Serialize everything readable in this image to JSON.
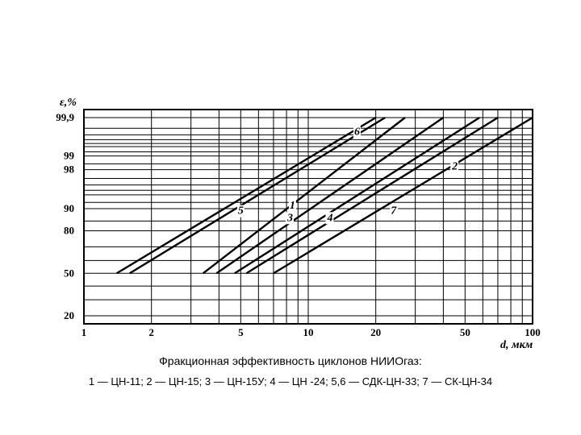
{
  "chart_data": {
    "type": "line",
    "title": "",
    "xlabel": "d, мкм",
    "ylabel": "ε,%",
    "x_scale": "log",
    "y_scale": "probability",
    "xlim": [
      1,
      100
    ],
    "ylim": [
      20,
      99.9
    ],
    "x_ticks": [
      1,
      2,
      5,
      10,
      20,
      50,
      100
    ],
    "x_tick_labels": [
      "1",
      "2",
      "5",
      "10",
      "20",
      "50",
      "100"
    ],
    "y_ticks": [
      20,
      50,
      80,
      90,
      98,
      99,
      99.9
    ],
    "y_tick_labels": [
      "20",
      "50",
      "80",
      "90",
      "98",
      "99",
      "99,9"
    ],
    "grid": true,
    "series": [
      {
        "name": "1",
        "x": [
          3.4,
          27.0
        ],
        "y": [
          50,
          99.9
        ]
      },
      {
        "name": "2",
        "x": [
          4.7,
          58.0
        ],
        "y": [
          50,
          99.9
        ]
      },
      {
        "name": "3",
        "x": [
          3.9,
          40.0
        ],
        "y": [
          50,
          99.9
        ]
      },
      {
        "name": "4",
        "x": [
          5.3,
          70.0
        ],
        "y": [
          50,
          99.9
        ]
      },
      {
        "name": "5",
        "x": [
          1.6,
          22.0
        ],
        "y": [
          50,
          99.9
        ]
      },
      {
        "name": "6",
        "x": [
          1.4,
          20.0
        ],
        "y": [
          50,
          99.9
        ]
      },
      {
        "name": "7",
        "x": [
          7.0,
          100.0
        ],
        "y": [
          50,
          99.9
        ]
      }
    ],
    "label_points": [
      {
        "name": "1",
        "x": 8.5,
        "y": 90
      },
      {
        "name": "2",
        "x": 45,
        "y": 98
      },
      {
        "name": "3",
        "x": 8.3,
        "y": 85
      },
      {
        "name": "4",
        "x": 12.5,
        "y": 85
      },
      {
        "name": "5",
        "x": 5.0,
        "y": 88
      },
      {
        "name": "6",
        "x": 16.5,
        "y": 99.7
      },
      {
        "name": "7",
        "x": 24,
        "y": 88
      }
    ]
  },
  "caption": {
    "title": "Фракционная эффективность циклонов НИИОгаз:",
    "legend": "1 — ЦН-11; 2 — ЦН-15; 3 — ЦН-15У; 4 — ЦН -24; 5,6 — СДК-ЦН-33; 7 — СК-ЦН-34"
  }
}
